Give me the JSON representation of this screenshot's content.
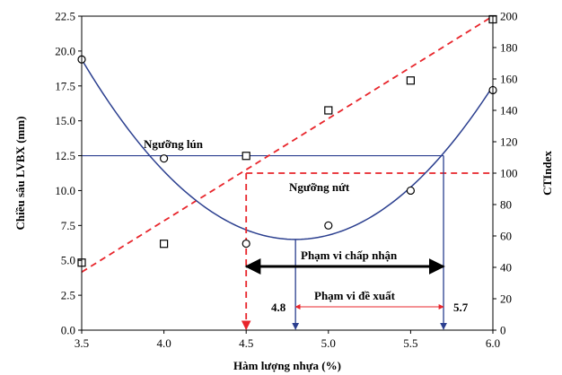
{
  "chart_data": {
    "type": "scatter",
    "xlabel": "Hàm lượng nhựa (%)",
    "ylabel_left": "Chiều sâu LVBX (mm)",
    "ylabel_right": "CTIndex",
    "xlim": [
      3.5,
      6.0
    ],
    "ylim_left": [
      0.0,
      22.5
    ],
    "ylim_right": [
      0,
      200
    ],
    "x_ticks": [
      "3.5",
      "4.0",
      "4.5",
      "5.0",
      "5.5",
      "6.0"
    ],
    "y_left_ticks": [
      "0.0",
      "2.5",
      "5.0",
      "7.5",
      "10.0",
      "12.5",
      "15.0",
      "17.5",
      "20.0",
      "22.5"
    ],
    "y_right_ticks": [
      "0",
      "20",
      "40",
      "60",
      "80",
      "100",
      "120",
      "140",
      "160",
      "180",
      "200"
    ],
    "grid": false,
    "series": [
      {
        "marker": "circle",
        "axis": "left",
        "color": "#000000",
        "x": [
          3.5,
          4.0,
          4.5,
          5.0,
          5.5,
          6.0
        ],
        "y": [
          19.4,
          12.3,
          6.2,
          7.5,
          10.0,
          17.2
        ]
      },
      {
        "marker": "square",
        "axis": "right",
        "color": "#000000",
        "x": [
          3.5,
          4.0,
          4.5,
          5.0,
          5.5,
          6.0
        ],
        "y": [
          43,
          55,
          111,
          140,
          159,
          198
        ]
      }
    ],
    "fit_curve": {
      "axis": "left",
      "color": "#2b3f8f",
      "vertex_x": 4.8,
      "vertex_y": 6.5,
      "points_x": [
        3.5,
        5.7
      ]
    },
    "trend_line": {
      "axis": "right",
      "color": "#e8252b",
      "x": [
        3.5,
        6.0
      ],
      "y": [
        37,
        200
      ]
    },
    "thresholds": {
      "rut_left_value": 12.5,
      "crack_right_value": 100,
      "crack_x_start": 4.5
    },
    "markers": {
      "x_values": [
        4.8,
        5.7
      ],
      "labels": [
        "4.8",
        "5.7"
      ],
      "red_drop_x": 4.5
    },
    "annotations": {
      "rut_label": "Ngưỡng lún",
      "crack_label": "Ngưỡng nứt",
      "acceptable_label": "Phạm vi chấp nhận",
      "acceptable_range": [
        4.5,
        5.7
      ],
      "proposed_label": "Phạm vi đề xuất",
      "proposed_range": [
        4.8,
        5.7
      ]
    },
    "colors": {
      "axis": "#000000",
      "threshold_line": "#2b3f8f",
      "red": "#e8252b"
    }
  }
}
